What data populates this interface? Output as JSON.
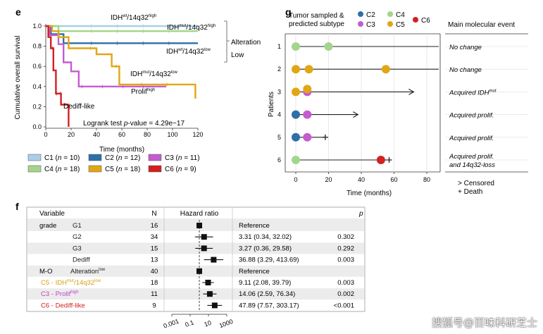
{
  "panels": {
    "e": "e",
    "g": "g",
    "f": "f"
  },
  "watermark": "搜狐号@百味科研芝士",
  "chart_data": [
    {
      "type": "line",
      "panel": "e",
      "ylabel": "Cumulative overall survival",
      "xlabel": "Time (months)",
      "xlim": [
        0,
        120
      ],
      "ylim": [
        0,
        1.0
      ],
      "xticks": [
        0,
        20,
        40,
        60,
        80,
        100,
        120
      ],
      "yticks": [
        0.0,
        0.2,
        0.4,
        0.6,
        0.8,
        1.0
      ],
      "series": [
        {
          "name": "C1",
          "n": "10",
          "color": "#a9cfe6",
          "points": [
            [
              0,
              1.0
            ],
            [
              120,
              1.0
            ]
          ]
        },
        {
          "name": "C2",
          "n": "12",
          "color": "#2f6fa8",
          "points": [
            [
              0,
              1.0
            ],
            [
              4,
              1.0
            ],
            [
              4,
              0.92
            ],
            [
              14,
              0.92
            ],
            [
              14,
              0.83
            ],
            [
              120,
              0.83
            ]
          ]
        },
        {
          "name": "C3",
          "n": "11",
          "color": "#c45ccf",
          "points": [
            [
              0,
              1.0
            ],
            [
              3,
              1.0
            ],
            [
              3,
              0.91
            ],
            [
              10,
              0.91
            ],
            [
              10,
              0.82
            ],
            [
              14,
              0.82
            ],
            [
              14,
              0.64
            ],
            [
              20,
              0.64
            ],
            [
              20,
              0.55
            ],
            [
              26,
              0.55
            ],
            [
              26,
              0.4
            ],
            [
              95,
              0.4
            ]
          ]
        },
        {
          "name": "C4",
          "n": "18",
          "color": "#a3d58a",
          "points": [
            [
              0,
              1.0
            ],
            [
              10,
              1.0
            ],
            [
              10,
              0.95
            ],
            [
              120,
              0.95
            ]
          ]
        },
        {
          "name": "C5",
          "n": "18",
          "color": "#e2a612",
          "points": [
            [
              0,
              1.0
            ],
            [
              5,
              1.0
            ],
            [
              5,
              0.95
            ],
            [
              10,
              0.95
            ],
            [
              10,
              0.89
            ],
            [
              18,
              0.89
            ],
            [
              18,
              0.78
            ],
            [
              40,
              0.78
            ],
            [
              40,
              0.72
            ],
            [
              52,
              0.72
            ],
            [
              52,
              0.6
            ],
            [
              58,
              0.6
            ],
            [
              58,
              0.42
            ],
            [
              118,
              0.42
            ],
            [
              118,
              0.28
            ]
          ]
        },
        {
          "name": "C6",
          "n": "9",
          "color": "#d32020",
          "points": [
            [
              0,
              1.0
            ],
            [
              2,
              1.0
            ],
            [
              2,
              0.89
            ],
            [
              4,
              0.89
            ],
            [
              4,
              0.78
            ],
            [
              6,
              0.78
            ],
            [
              6,
              0.56
            ],
            [
              8,
              0.56
            ],
            [
              8,
              0.33
            ],
            [
              12,
              0.33
            ],
            [
              12,
              0.22
            ],
            [
              18,
              0.22
            ],
            [
              18,
              0.0
            ]
          ]
        }
      ],
      "annotations": {
        "logrank": "Logrank test",
        "pval": "p-value = 4.29e−17",
        "idh_wt_high_1": "IDH",
        "idh_wt_high_2": "wt",
        "idh_wt_high_3": "/14q32",
        "idh_wt_high_4": "high",
        "idh_mut_high_1": "IDH",
        "idh_mut_high_2": "mut",
        "idh_mut_high_3": "/14q32",
        "idh_mut_high_4": "high",
        "idh_wt_low_1": "IDH",
        "idh_wt_low_2": "wt",
        "idh_wt_low_3": "/14q32",
        "idh_wt_low_4": "low",
        "idh_mut_low_1": "IDH",
        "idh_mut_low_2": "mut",
        "idh_mut_low_3": "/14q32",
        "idh_mut_low_4": "low",
        "prolif_1": "Prolif",
        "prolif_2": "high",
        "dediff": "Dediff-like",
        "alteration": "Alteration",
        "low": "Low"
      }
    },
    {
      "type": "scatter",
      "panel": "g",
      "title1": "Tumor sampled &",
      "title2": "predicted subtype",
      "ylabel": "Patients",
      "xlabel": "Time (months)",
      "xlim": [
        0,
        80
      ],
      "xticks": [
        0,
        20,
        40,
        60,
        80
      ],
      "right_header": "Main molecular event",
      "legend": [
        {
          "label": "C2",
          "color": "#2f6fa8"
        },
        {
          "label": "C3",
          "color": "#c45ccf"
        },
        {
          "label": "C4",
          "color": "#a3d58a"
        },
        {
          "label": "C5",
          "color": "#e2a612"
        },
        {
          "label": "C6",
          "color": "#d32020"
        }
      ],
      "patients": [
        {
          "id": "1",
          "end": 80,
          "end_type": "line",
          "event1": "No change",
          "event2": "",
          "samples": [
            {
              "t": 0,
              "c": "C4"
            },
            {
              "t": 20,
              "c": "C4"
            }
          ]
        },
        {
          "id": "2",
          "end": 80,
          "end_type": "line",
          "event1": "No change",
          "event2": "",
          "samples": [
            {
              "t": 0,
              "c": "C5"
            },
            {
              "t": 8,
              "c": "C5"
            },
            {
              "t": 55,
              "c": "C5"
            }
          ]
        },
        {
          "id": "3",
          "end": 72,
          "end_type": "censored",
          "event1": "Acquired IDH",
          "event1_sup": "mut",
          "event2": "",
          "samples": [
            {
              "t": 0,
              "c": "C5"
            },
            {
              "t": 7,
              "c": "C3"
            },
            {
              "t": 7,
              "c": "C5",
              "dy": -4
            }
          ]
        },
        {
          "id": "4",
          "end": 38,
          "end_type": "censored",
          "event1": "Acquired prolif.",
          "event2": "",
          "samples": [
            {
              "t": 0,
              "c": "C2"
            },
            {
              "t": 7,
              "c": "C3"
            }
          ]
        },
        {
          "id": "5",
          "end": 18,
          "end_type": "death",
          "event1": "Acquired prolif.",
          "event2": "",
          "samples": [
            {
              "t": 0,
              "c": "C2"
            },
            {
              "t": 7,
              "c": "C3"
            }
          ]
        },
        {
          "id": "6",
          "end": 57,
          "end_type": "death",
          "event1": "Acquired prolif.",
          "event2": "and 14q32-loss",
          "samples": [
            {
              "t": 0,
              "c": "C4"
            },
            {
              "t": 52,
              "c": "C6"
            }
          ]
        }
      ],
      "censored_note": "> Censored",
      "death_note": "+ Death"
    },
    {
      "type": "table",
      "panel": "f",
      "headers": {
        "variable": "Variable",
        "n": "N",
        "hr": "Hazard ratio",
        "p": "p"
      },
      "x_axis_ticks": [
        "0.001",
        "0.1",
        "10",
        "1000"
      ],
      "rows": [
        {
          "group": "grade",
          "label": "G1",
          "label_sup": "",
          "n": "16",
          "est": "Reference",
          "p": "",
          "hr": 1,
          "lo": 1,
          "hi": 1,
          "color": "#222"
        },
        {
          "group": "",
          "label": "G2",
          "label_sup": "",
          "n": "34",
          "est": "3.31 (0.34, 32.02)",
          "p": "0.302",
          "hr": 3.31,
          "lo": 0.34,
          "hi": 32.02,
          "color": "#222"
        },
        {
          "group": "",
          "label": "G3",
          "label_sup": "",
          "n": "15",
          "est": "3.27 (0.36, 29.58)",
          "p": "0.292",
          "hr": 3.27,
          "lo": 0.36,
          "hi": 29.58,
          "color": "#222"
        },
        {
          "group": "",
          "label": "Dediff",
          "label_sup": "",
          "n": "13",
          "est": "36.88 (3.29, 413.69)",
          "p": "0.003",
          "hr": 36.88,
          "lo": 3.29,
          "hi": 413.69,
          "color": "#222"
        },
        {
          "group": "M-O",
          "label": "Alteration",
          "label_sup": "low",
          "n": "40",
          "est": "Reference",
          "p": "",
          "hr": 1,
          "lo": 1,
          "hi": 1,
          "color": "#222"
        },
        {
          "group": "",
          "label": "C5 - IDH",
          "label_sup": "mut",
          "label_tail": "/14q32",
          "label_sup2": "low",
          "n": "18",
          "est": "9.11 (2.08, 39.79)",
          "p": "0.003",
          "hr": 9.11,
          "lo": 2.08,
          "hi": 39.79,
          "color": "#d9a010"
        },
        {
          "group": "",
          "label": "C3 - Prolif",
          "label_sup": "high",
          "n": "11",
          "est": "14.06 (2.59, 76.34)",
          "p": "0.002",
          "hr": 14.06,
          "lo": 2.59,
          "hi": 76.34,
          "color": "#c045c8"
        },
        {
          "group": "",
          "label": "C6 - Dediff-like",
          "label_sup": "",
          "n": "9",
          "est": "47.89 (7.57, 303.17)",
          "p": "<0.001",
          "hr": 47.89,
          "lo": 7.57,
          "hi": 303.17,
          "color": "#d32020"
        }
      ]
    }
  ]
}
